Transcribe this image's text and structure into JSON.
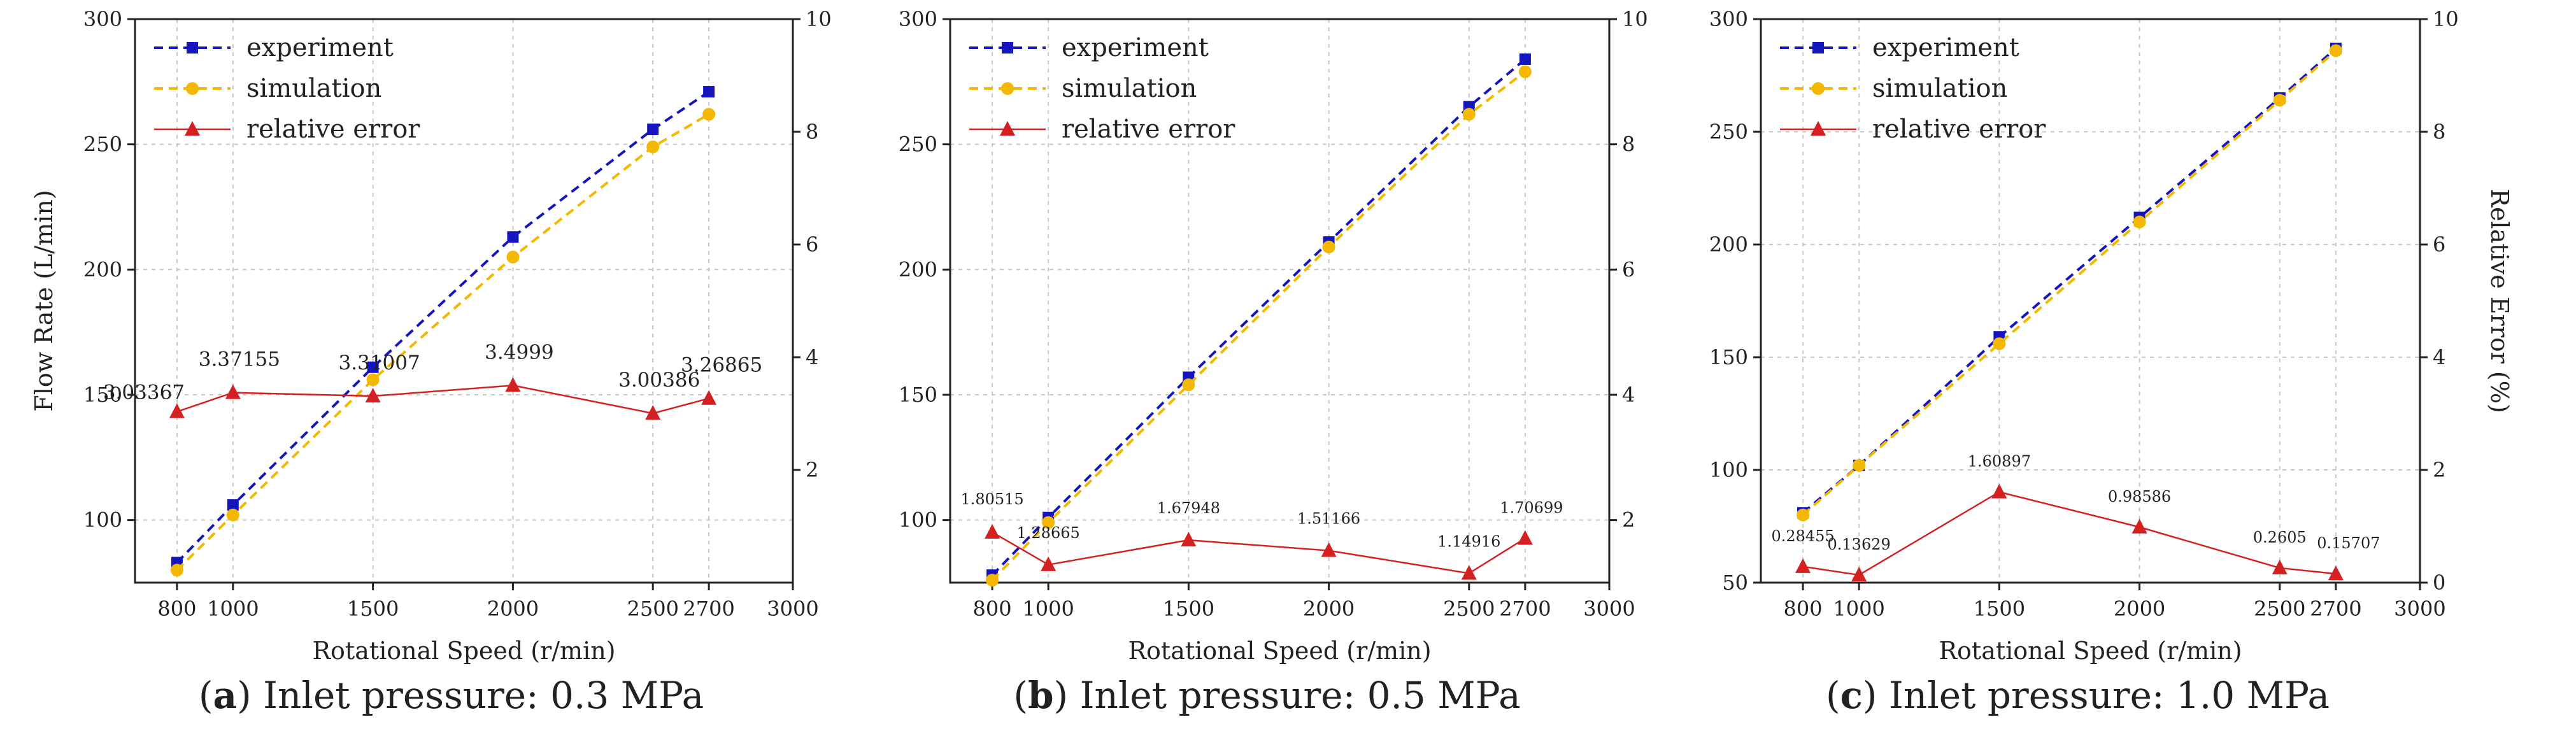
{
  "colors": {
    "experiment": "#1515c0",
    "simulation": "#f5b800",
    "error": "#d42020",
    "axis": "#222222",
    "grid": "#c8c8c8"
  },
  "chart_data": [
    {
      "type": "line",
      "panel_letter": "a",
      "caption": ") Inlet pressure: 0.3 MPa",
      "xlabel": "Rotational Speed (r/min)",
      "ylabel": "Flow Rate (L/min)",
      "y2label": "",
      "x": [
        800,
        1000,
        1500,
        2000,
        2500,
        2700
      ],
      "xlim": [
        650,
        3000
      ],
      "xticks": [
        800,
        1000,
        1500,
        2000,
        2500,
        2700,
        3000
      ],
      "ylim": [
        75,
        300
      ],
      "yticks": [
        100,
        150,
        200,
        250,
        300
      ],
      "y2lim": [
        0,
        10
      ],
      "y2ticks": [
        2,
        4,
        6,
        8,
        10
      ],
      "series": [
        {
          "name": "experiment",
          "axis": "left",
          "values": [
            83,
            106,
            161,
            213,
            256,
            271
          ]
        },
        {
          "name": "simulation",
          "axis": "left",
          "values": [
            80,
            102,
            156,
            205,
            249,
            262
          ]
        },
        {
          "name": "relative error",
          "axis": "right",
          "values": [
            3.03367,
            3.37155,
            3.31007,
            3.4999,
            3.00386,
            3.26865
          ],
          "labels": [
            "3.03367",
            "3.37155",
            "3.31007",
            "3.4999",
            "3.00386",
            "3.26865"
          ]
        }
      ]
    },
    {
      "type": "line",
      "panel_letter": "b",
      "caption": ") Inlet pressure: 0.5 MPa",
      "xlabel": "Rotational Speed (r/min)",
      "ylabel": "",
      "y2label": "",
      "x": [
        800,
        1000,
        1500,
        2000,
        2500,
        2700
      ],
      "xlim": [
        650,
        3000
      ],
      "xticks": [
        800,
        1000,
        1500,
        2000,
        2500,
        2700,
        3000
      ],
      "ylim": [
        75,
        300
      ],
      "yticks": [
        100,
        150,
        200,
        250,
        300
      ],
      "y2lim": [
        1,
        10
      ],
      "y2ticks": [
        2,
        4,
        6,
        8,
        10
      ],
      "series": [
        {
          "name": "experiment",
          "axis": "left",
          "values": [
            78,
            101,
            157,
            211,
            265,
            284
          ]
        },
        {
          "name": "simulation",
          "axis": "left",
          "values": [
            76,
            99,
            154,
            209,
            262,
            279
          ]
        },
        {
          "name": "relative error",
          "axis": "right",
          "values": [
            1.80515,
            1.28665,
            1.67948,
            1.51166,
            1.14916,
            1.70699
          ],
          "labels": [
            "1.80515",
            "1.28665",
            "1.67948",
            "1.51166",
            "1.14916",
            "1.70699"
          ]
        }
      ]
    },
    {
      "type": "line",
      "panel_letter": "c",
      "caption": ") Inlet pressure: 1.0 MPa",
      "xlabel": "Rotational Speed (r/min)",
      "ylabel": "",
      "y2label": "Relative Error (%)",
      "x": [
        800,
        1000,
        1500,
        2000,
        2500,
        2700
      ],
      "xlim": [
        650,
        3000
      ],
      "xticks": [
        800,
        1000,
        1500,
        2000,
        2500,
        2700,
        3000
      ],
      "ylim": [
        50,
        300
      ],
      "yticks": [
        50,
        100,
        150,
        200,
        250,
        300
      ],
      "y2lim": [
        0,
        10
      ],
      "y2ticks": [
        0,
        2,
        4,
        6,
        8,
        10
      ],
      "series": [
        {
          "name": "experiment",
          "axis": "left",
          "values": [
            81,
            102,
            159,
            212,
            265,
            287
          ]
        },
        {
          "name": "simulation",
          "axis": "left",
          "values": [
            80,
            102,
            156,
            210,
            264,
            286
          ]
        },
        {
          "name": "relative error",
          "axis": "right",
          "values": [
            0.28455,
            0.13629,
            1.60897,
            0.98586,
            0.2605,
            0.15707
          ],
          "labels": [
            "0.28455",
            "0.13629",
            "1.60897",
            "0.98586",
            "0.2605",
            "0.15707"
          ]
        }
      ]
    }
  ]
}
